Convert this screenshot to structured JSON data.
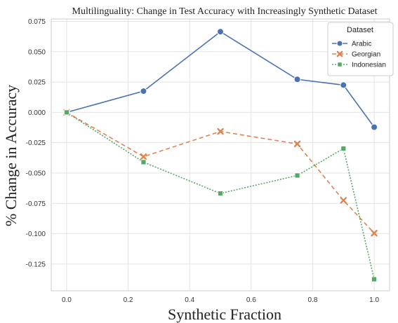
{
  "chart_data": {
    "type": "line",
    "title": "Multilinguality: Change in Test Accuracy with Increasingly Synthetic Dataset",
    "xlabel": "Synthetic Fraction",
    "ylabel": "% Change in Accuracy",
    "xlim": [
      -0.05,
      1.05
    ],
    "ylim": [
      -0.147,
      0.077
    ],
    "x_ticks": [
      "0.0",
      "0.2",
      "0.4",
      "0.6",
      "0.8",
      "1.0"
    ],
    "y_ticks": [
      "0.075",
      "0.050",
      "0.025",
      "0.000",
      "-0.025",
      "-0.050",
      "-0.075",
      "-0.100",
      "-0.125"
    ],
    "grid": true,
    "legend_title": "Dataset",
    "legend_position": "top-right",
    "x": [
      0.0,
      0.25,
      0.5,
      0.75,
      0.9,
      1.0
    ],
    "series": [
      {
        "name": "Arabic",
        "values": [
          0.0,
          0.0175,
          0.0665,
          0.0272,
          0.0225,
          -0.0122
        ],
        "color": "#4c72b0",
        "marker": "circle",
        "dash": "solid"
      },
      {
        "name": "Georgian",
        "values": [
          0.0,
          -0.0365,
          -0.0157,
          -0.026,
          -0.0725,
          -0.0995
        ],
        "color": "#dd8452",
        "marker": "x",
        "dash": "dashed"
      },
      {
        "name": "Indonesian",
        "values": [
          0.0,
          -0.041,
          -0.0668,
          -0.052,
          -0.0298,
          -0.1375
        ],
        "color": "#55a868",
        "marker": "square",
        "dash": "dotted"
      }
    ]
  }
}
